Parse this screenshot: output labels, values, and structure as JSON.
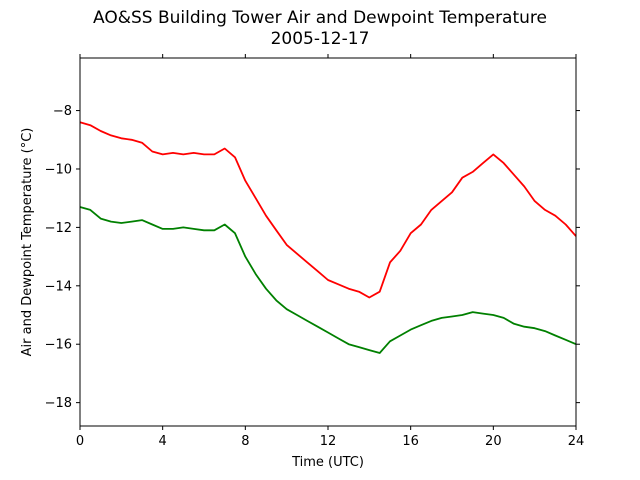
{
  "chart_data": {
    "type": "line",
    "title": "AO&SS Building Tower Air and Dewpoint Temperature",
    "subtitle": "2005-12-17",
    "xlabel": "Time (UTC)",
    "ylabel": "Air and Dewpoint Temperature (°C)",
    "xlim": [
      0,
      24
    ],
    "ylim": [
      -18.8,
      -6.2
    ],
    "xticks": [
      0,
      4,
      8,
      12,
      16,
      20,
      24
    ],
    "yticks": [
      -18,
      -16,
      -14,
      -12,
      -10,
      -8
    ],
    "grid": false,
    "legend": "none",
    "series": [
      {
        "color": "#ff0000",
        "x": [
          0,
          0.5,
          1,
          1.5,
          2,
          2.5,
          3,
          3.5,
          4,
          4.5,
          5,
          5.5,
          6,
          6.5,
          7,
          7.5,
          8,
          8.5,
          9,
          9.5,
          10,
          10.5,
          11,
          11.5,
          12,
          12.5,
          13,
          13.5,
          14,
          14.5,
          15,
          15.5,
          16,
          16.5,
          17,
          17.5,
          18,
          18.5,
          19,
          19.5,
          20,
          20.5,
          21,
          21.5,
          22,
          22.5,
          23,
          23.5,
          24
        ],
        "y": [
          -8.4,
          -8.5,
          -8.7,
          -8.85,
          -8.95,
          -9.0,
          -9.1,
          -9.4,
          -9.5,
          -9.45,
          -9.5,
          -9.45,
          -9.5,
          -9.5,
          -9.3,
          -9.6,
          -10.4,
          -11.0,
          -11.6,
          -12.1,
          -12.6,
          -12.9,
          -13.2,
          -13.5,
          -13.8,
          -13.95,
          -14.1,
          -14.2,
          -14.4,
          -14.2,
          -13.2,
          -12.8,
          -12.2,
          -11.9,
          -11.4,
          -11.1,
          -10.8,
          -10.3,
          -10.1,
          -9.8,
          -9.5,
          -9.8,
          -10.2,
          -10.6,
          -11.1,
          -11.4,
          -11.6,
          -11.9,
          -12.3
        ]
      },
      {
        "color": "#008000",
        "x": [
          0,
          0.5,
          1,
          1.5,
          2,
          2.5,
          3,
          3.5,
          4,
          4.5,
          5,
          5.5,
          6,
          6.5,
          7,
          7.5,
          8,
          8.5,
          9,
          9.5,
          10,
          10.5,
          11,
          11.5,
          12,
          12.5,
          13,
          13.5,
          14,
          14.5,
          15,
          15.5,
          16,
          16.5,
          17,
          17.5,
          18,
          18.5,
          19,
          19.5,
          20,
          20.5,
          21,
          21.5,
          22,
          22.5,
          23,
          23.5,
          24
        ],
        "y": [
          -11.3,
          -11.4,
          -11.7,
          -11.8,
          -11.85,
          -11.8,
          -11.75,
          -11.9,
          -12.05,
          -12.05,
          -12.0,
          -12.05,
          -12.1,
          -12.1,
          -11.9,
          -12.2,
          -13.0,
          -13.6,
          -14.1,
          -14.5,
          -14.8,
          -15.0,
          -15.2,
          -15.4,
          -15.6,
          -15.8,
          -16.0,
          -16.1,
          -16.2,
          -16.3,
          -15.9,
          -15.7,
          -15.5,
          -15.35,
          -15.2,
          -15.1,
          -15.05,
          -15.0,
          -14.9,
          -14.95,
          -15.0,
          -15.1,
          -15.3,
          -15.4,
          -15.45,
          -15.55,
          -15.7,
          -15.85,
          -16.0
        ]
      }
    ]
  }
}
